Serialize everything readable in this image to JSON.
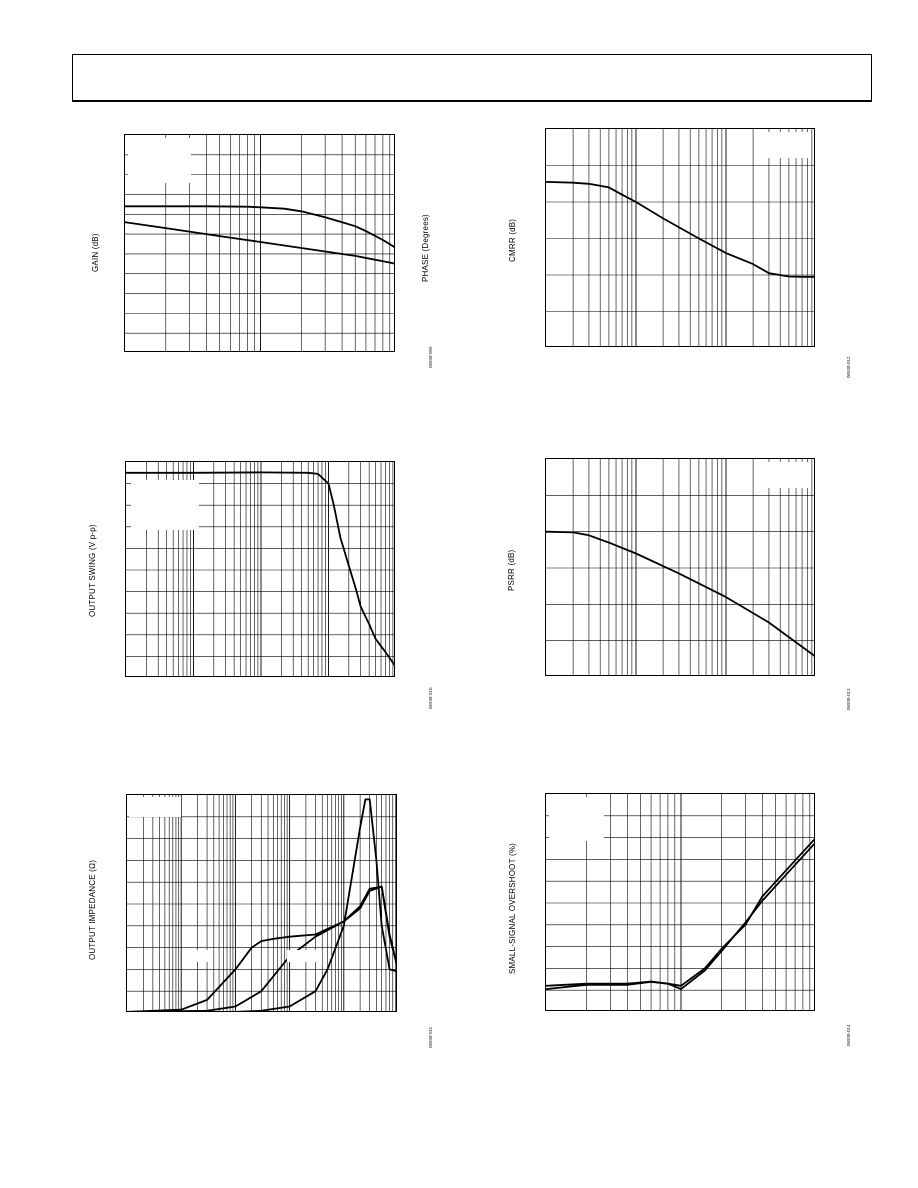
{
  "header": {},
  "colors": {
    "line": "#000000",
    "grid": "#000000",
    "background": "#ffffff"
  },
  "chart_data": [
    {
      "id": "gain-phase",
      "type": "line",
      "ylabel": "GAIN (dB)",
      "y2label": "PHASE (Degrees)",
      "figure_code": "06938-009",
      "x_decades": 2,
      "x_scale": "log",
      "y_divisions": 11,
      "xlim": [
        1,
        100
      ],
      "ylim": [
        0,
        11
      ],
      "series": [
        {
          "x": [
            1,
            2,
            4,
            8,
            10,
            15,
            20,
            30,
            40,
            50,
            60,
            80,
            100
          ],
          "y": [
            7.4,
            7.4,
            7.4,
            7.38,
            7.35,
            7.28,
            7.15,
            6.85,
            6.6,
            6.4,
            6.15,
            5.7,
            5.3
          ]
        },
        {
          "x": [
            1,
            2,
            5,
            10,
            20,
            50,
            100
          ],
          "y": [
            6.6,
            6.3,
            5.9,
            5.6,
            5.3,
            4.9,
            4.5
          ]
        }
      ]
    },
    {
      "id": "cmrr",
      "type": "line",
      "ylabel": "CMRR (dB)",
      "figure_code": "06938-012",
      "x_decades": 3,
      "x_scale": "log",
      "y_divisions": 6,
      "xlim": [
        1,
        1000
      ],
      "ylim": [
        0,
        6
      ],
      "series": [
        {
          "x": [
            1,
            2,
            3,
            5,
            7,
            10,
            20,
            50,
            100,
            200,
            300,
            500,
            700,
            1000
          ],
          "y": [
            4.55,
            4.53,
            4.5,
            4.4,
            4.2,
            4.0,
            3.55,
            3.0,
            2.6,
            2.3,
            2.05,
            1.96,
            1.95,
            1.95
          ]
        }
      ]
    },
    {
      "id": "output-swing",
      "type": "line",
      "ylabel": "OUTPUT SWING (V p-p)",
      "figure_code": "06938-010",
      "x_decades": 4,
      "x_scale": "log",
      "y_divisions": 10,
      "xlim": [
        1,
        10000
      ],
      "ylim": [
        0,
        10
      ],
      "series": [
        {
          "x": [
            1,
            10,
            100,
            500,
            700,
            1000,
            1200,
            1500,
            2000,
            2500,
            3000,
            4000,
            5000,
            7000,
            10000
          ],
          "y": [
            9.5,
            9.5,
            9.52,
            9.5,
            9.45,
            9.0,
            8.0,
            6.5,
            5.2,
            4.2,
            3.3,
            2.5,
            1.8,
            1.2,
            0.5
          ]
        }
      ]
    },
    {
      "id": "psrr",
      "type": "line",
      "ylabel": "PSRR (dB)",
      "figure_code": "06938-013",
      "x_decades": 3,
      "x_scale": "log",
      "y_divisions": 6,
      "xlim": [
        1,
        1000
      ],
      "ylim": [
        0,
        6
      ],
      "series": [
        {
          "x": [
            1,
            2,
            3,
            5,
            10,
            30,
            100,
            300,
            1000
          ],
          "y": [
            4.0,
            3.98,
            3.9,
            3.7,
            3.4,
            2.85,
            2.2,
            1.5,
            0.55
          ]
        }
      ]
    },
    {
      "id": "output-impedance",
      "type": "line",
      "ylabel": "OUTPUT IMPEDANCE (Ω)",
      "figure_code": "06938-011",
      "x_decades": 5,
      "x_scale": "log",
      "y_divisions": 10,
      "xlim": [
        1,
        100000
      ],
      "ylim": [
        0,
        10
      ],
      "series": [
        {
          "x": [
            1,
            10,
            30,
            100,
            200,
            300,
            500,
            1000,
            3000,
            10000,
            20000,
            30000,
            50000,
            70000,
            100000
          ],
          "y": [
            0.05,
            0.15,
            0.6,
            2.0,
            3.0,
            3.3,
            3.4,
            3.5,
            3.6,
            4.2,
            4.8,
            5.6,
            5.8,
            3.5,
            2.0
          ]
        },
        {
          "x": [
            1,
            30,
            100,
            300,
            1000,
            3000,
            10000,
            20000,
            30000,
            50000,
            70000,
            100000
          ],
          "y": [
            0.05,
            0.1,
            0.3,
            1.0,
            2.6,
            3.5,
            4.2,
            4.9,
            5.7,
            5.8,
            3.6,
            2.0
          ]
        },
        {
          "x": [
            1,
            100,
            300,
            1000,
            3000,
            5000,
            10000,
            20000,
            25000,
            30000,
            40000,
            50000,
            70000,
            100000
          ],
          "y": [
            0.02,
            0.05,
            0.1,
            0.3,
            1.0,
            2.0,
            4.0,
            8.5,
            9.8,
            9.8,
            7.0,
            4.0,
            2.0,
            1.9
          ]
        }
      ]
    },
    {
      "id": "small-signal-overshoot",
      "type": "line",
      "ylabel": "SMALL-SIGNAL OVERSHOOT (%)",
      "figure_code": "06938-014",
      "x_decades": 2,
      "x_scale": "log",
      "y_divisions": 10,
      "xlim": [
        1,
        100
      ],
      "ylim": [
        0,
        10
      ],
      "series": [
        {
          "x": [
            1,
            2,
            4,
            6,
            8,
            10,
            15,
            20,
            30,
            40,
            60,
            100
          ],
          "y": [
            1.2,
            1.3,
            1.3,
            1.4,
            1.3,
            1.2,
            2.0,
            2.9,
            4.0,
            5.3,
            6.5,
            8.0
          ]
        },
        {
          "x": [
            1,
            2,
            4,
            6,
            8,
            10,
            15,
            20,
            30,
            40,
            60,
            100
          ],
          "y": [
            1.05,
            1.25,
            1.25,
            1.38,
            1.3,
            1.05,
            1.9,
            2.8,
            4.1,
            5.1,
            6.3,
            7.8
          ]
        }
      ]
    }
  ]
}
